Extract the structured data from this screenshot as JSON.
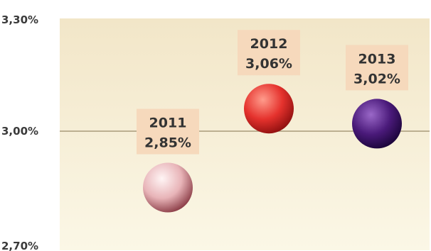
{
  "chart_data": {
    "type": "scatter",
    "title": "",
    "xlabel": "",
    "ylabel": "",
    "ylim": [
      2.7,
      3.3
    ],
    "y_ticks": [
      "3,30%",
      "3,00%",
      "2,70%"
    ],
    "y_tick_values": [
      3.3,
      3.0,
      2.7
    ],
    "reference_line": 3.0,
    "grid": false,
    "categories": [
      "2011",
      "2012",
      "2013"
    ],
    "values": [
      2.85,
      3.06,
      3.02
    ],
    "value_labels": [
      "2,85%",
      "3,06%",
      "3,02%"
    ],
    "colors": [
      "#e8b4b8",
      "#e5322d",
      "#4a1a7a"
    ],
    "colors_dark": [
      "#8a3b45",
      "#8e0f0f",
      "#1a0438"
    ],
    "colors_light": [
      "#fff5f5",
      "#ff9c8c",
      "#9a68c8"
    ]
  },
  "colors": {
    "plot_bg_top": "#f2e6c8",
    "plot_bg_bottom": "#fbf7e6",
    "label_box": "#f6d9bc",
    "reference_line": "#a89a7a"
  }
}
